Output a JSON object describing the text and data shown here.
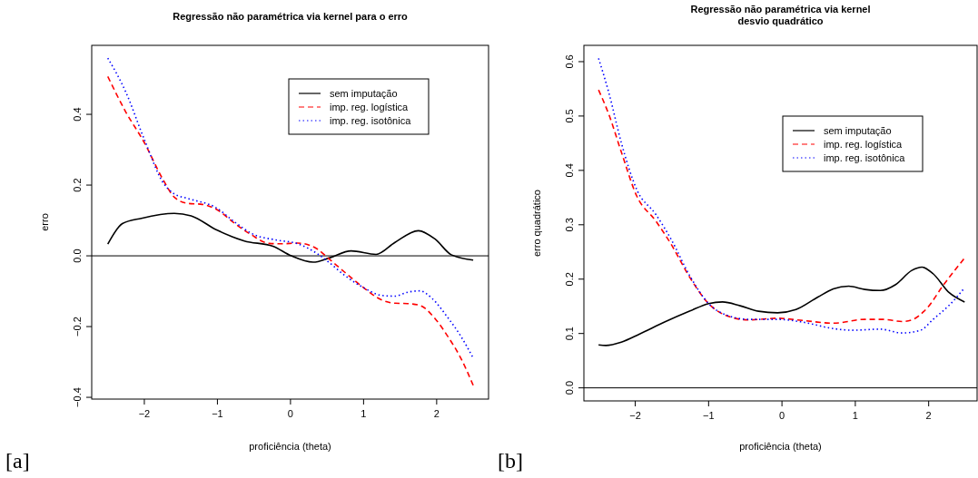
{
  "chart_data": [
    {
      "type": "line",
      "title": "Regressão não paramétrica via kernel para o erro",
      "xlabel": "proficiência (theta)",
      "ylabel": "erro",
      "annotations": [
        "[a]"
      ],
      "xlim": [
        -2.72,
        2.71
      ],
      "ylim": [
        -0.405,
        0.595
      ],
      "xticks": [
        -2,
        -1,
        0,
        1,
        2
      ],
      "yticks": [
        {
          "value": -0.4,
          "label": "−0.4"
        },
        {
          "value": -0.2,
          "label": "−0.2"
        },
        {
          "value": 0,
          "label": "0.0"
        },
        0.2,
        0.4
      ],
      "legend": "top right",
      "grid": false,
      "ref_lines": [
        {
          "axis": "y",
          "value": 0,
          "color": "#000000"
        }
      ],
      "series": [
        {
          "name": "sem imputação",
          "color": "#000000",
          "line_style": "solid",
          "x": [
            -2.5,
            -2.3,
            -2.04,
            -1.59,
            -1.36,
            -1.01,
            -0.63,
            -0.24,
            0.01,
            0.31,
            0.53,
            0.83,
            1.17,
            1.43,
            1.75,
            1.98,
            2.2,
            2.5
          ],
          "values": [
            0.033,
            0.091,
            0.106,
            0.12,
            0.113,
            0.073,
            0.042,
            0.027,
            0,
            -0.018,
            -0.006,
            0.014,
            0.004,
            0.038,
            0.071,
            0.047,
            0.003,
            -0.012
          ]
        },
        {
          "name": "imp. reg. logística",
          "color": "#ff0000",
          "line_style": "dashed",
          "x": [
            -2.5,
            -2.26,
            -2.0,
            -1.74,
            -1.59,
            -1.4,
            -1.23,
            -1.01,
            -0.76,
            -0.54,
            -0.29,
            -0.12,
            0.1,
            0.36,
            0.53,
            0.74,
            1.0,
            1.25,
            1.43,
            1.6,
            1.77,
            1.98,
            2.15,
            2.33,
            2.5
          ],
          "values": [
            0.507,
            0.409,
            0.32,
            0.214,
            0.166,
            0.148,
            0.146,
            0.131,
            0.091,
            0.06,
            0.035,
            0.034,
            0.036,
            0.02,
            -0.009,
            -0.046,
            -0.09,
            -0.125,
            -0.134,
            -0.135,
            -0.14,
            -0.178,
            -0.227,
            -0.289,
            -0.366
          ]
        },
        {
          "name": "imp. reg. isotônica",
          "color": "#0000ff",
          "line_style": "dotted",
          "x": [
            -2.5,
            -2.26,
            -2.0,
            -1.74,
            -1.59,
            -1.4,
            -1.01,
            -0.76,
            -0.5,
            -0.2,
            0.1,
            0.36,
            0.53,
            0.74,
            1.0,
            1.25,
            1.43,
            1.6,
            1.77,
            1.94,
            2.15,
            2.33,
            2.5
          ],
          "values": [
            0.559,
            0.466,
            0.329,
            0.206,
            0.175,
            0.162,
            0.135,
            0.095,
            0.06,
            0.045,
            0.034,
            0.007,
            -0.019,
            -0.055,
            -0.09,
            -0.112,
            -0.114,
            -0.103,
            -0.099,
            -0.121,
            -0.174,
            -0.227,
            -0.289
          ]
        }
      ]
    },
    {
      "type": "line",
      "title": "Regressão não paramétrica via kernel\ndesvio quadrático",
      "xlabel": "proficiência (theta)",
      "ylabel": "erro quadrático",
      "annotations": [
        "[b]"
      ],
      "xlim": [
        -2.7,
        2.66
      ],
      "ylim": [
        -0.024,
        0.63
      ],
      "xticks": [
        -2,
        -1,
        0,
        1,
        2
      ],
      "yticks": [
        {
          "value": 0,
          "label": "0.0"
        },
        0.1,
        0.2,
        0.3,
        0.4,
        0.5,
        0.6
      ],
      "legend": "top right",
      "grid": false,
      "ref_lines": [
        {
          "axis": "y",
          "value": 0,
          "color": "#000000"
        }
      ],
      "series": [
        {
          "name": "sem imputação",
          "color": "#000000",
          "line_style": "solid",
          "x": [
            -2.5,
            -2.4,
            -2.19,
            -1.94,
            -1.6,
            -1.26,
            -1.0,
            -0.81,
            -0.57,
            -0.32,
            -0.06,
            0.19,
            0.49,
            0.7,
            0.91,
            1.13,
            1.34,
            1.55,
            1.77,
            1.91,
            2.06,
            2.28,
            2.49
          ],
          "values": [
            0.079,
            0.078,
            0.084,
            0.099,
            0.121,
            0.141,
            0.155,
            0.158,
            0.151,
            0.141,
            0.138,
            0.144,
            0.167,
            0.182,
            0.187,
            0.181,
            0.179,
            0.19,
            0.216,
            0.222,
            0.21,
            0.175,
            0.158
          ]
        },
        {
          "name": "imp. reg. logística",
          "color": "#ff0000",
          "line_style": "dashed",
          "x": [
            -2.5,
            -2.36,
            -2.19,
            -1.98,
            -1.72,
            -1.51,
            -1.26,
            -1.0,
            -0.74,
            -0.45,
            -0.06,
            0.28,
            0.7,
            1.13,
            1.38,
            1.64,
            1.77,
            1.98,
            2.19,
            2.49
          ],
          "values": [
            0.548,
            0.503,
            0.434,
            0.353,
            0.307,
            0.264,
            0.204,
            0.155,
            0.132,
            0.125,
            0.128,
            0.124,
            0.119,
            0.126,
            0.126,
            0.122,
            0.125,
            0.147,
            0.187,
            0.239
          ]
        },
        {
          "name": "imp. reg. isotônica",
          "color": "#0000ff",
          "line_style": "dotted",
          "x": [
            -2.5,
            -2.36,
            -2.19,
            -1.98,
            -1.72,
            -1.51,
            -1.26,
            -1.0,
            -0.74,
            -0.45,
            -0.06,
            0.28,
            0.7,
            0.96,
            1.34,
            1.64,
            1.89,
            2.06,
            2.28,
            2.49
          ],
          "values": [
            0.606,
            0.543,
            0.451,
            0.365,
            0.319,
            0.273,
            0.207,
            0.155,
            0.133,
            0.126,
            0.126,
            0.121,
            0.109,
            0.106,
            0.108,
            0.101,
            0.106,
            0.126,
            0.152,
            0.184
          ]
        }
      ]
    }
  ]
}
